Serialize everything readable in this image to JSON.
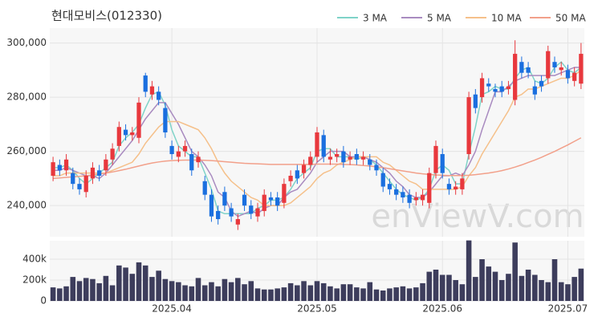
{
  "chart_data": {
    "type": "candlestick",
    "title": "현대모비스(012330)",
    "watermark": "enViewV.com",
    "legend": "top-right",
    "grid": true,
    "up_color": "#e8383d",
    "down_color": "#1a6fdf",
    "categories": [
      null,
      null,
      null,
      null,
      null,
      null,
      null,
      null,
      null,
      null,
      null,
      null,
      null,
      null,
      null,
      null,
      null,
      null,
      "2025.04",
      null,
      null,
      null,
      null,
      null,
      null,
      null,
      null,
      null,
      null,
      null,
      null,
      null,
      null,
      null,
      null,
      null,
      null,
      null,
      null,
      null,
      "2025.05",
      null,
      null,
      null,
      null,
      null,
      null,
      null,
      null,
      null,
      null,
      null,
      null,
      null,
      null,
      null,
      null,
      null,
      null,
      "2025.06",
      null,
      null,
      null,
      null,
      null,
      null,
      null,
      null,
      null,
      null,
      null,
      null,
      null,
      null,
      null,
      null,
      null,
      null,
      "2025.07",
      null,
      null
    ],
    "open": [
      251000,
      255000,
      253000,
      252000,
      248000,
      245000,
      250000,
      253000,
      253000,
      257000,
      262000,
      268000,
      266000,
      265000,
      288000,
      281000,
      282000,
      276000,
      262000,
      258000,
      260000,
      259000,
      256000,
      249000,
      244000,
      238000,
      245000,
      239000,
      233000,
      244000,
      240000,
      236000,
      238000,
      243000,
      243000,
      241000,
      249000,
      253000,
      252000,
      255000,
      258000,
      266000,
      257000,
      258000,
      260000,
      257000,
      259000,
      257000,
      257000,
      255000,
      252000,
      248000,
      246000,
      245000,
      244000,
      242000,
      242000,
      241000,
      252000,
      259000,
      248000,
      246000,
      246000,
      259000,
      281000,
      280000,
      285000,
      283000,
      284000,
      283000,
      279000,
      293000,
      291000,
      284000,
      286000,
      287000,
      293000,
      290000,
      290000,
      286000,
      285000
    ],
    "high": [
      258000,
      257000,
      259000,
      254000,
      250000,
      253000,
      256000,
      255000,
      259000,
      263000,
      271000,
      270000,
      269000,
      280000,
      289000,
      286000,
      284000,
      278000,
      264000,
      262000,
      264000,
      261000,
      260000,
      251000,
      246000,
      240000,
      247000,
      241000,
      237000,
      246000,
      242000,
      241000,
      246000,
      245000,
      245000,
      250000,
      253000,
      255000,
      257000,
      260000,
      269000,
      268000,
      261000,
      261000,
      262000,
      260000,
      261000,
      260000,
      259000,
      257000,
      254000,
      250000,
      248000,
      247000,
      246000,
      245000,
      246000,
      254000,
      264000,
      261000,
      250000,
      249000,
      252000,
      282000,
      283000,
      289000,
      287000,
      285000,
      286000,
      286000,
      301000,
      295000,
      293000,
      286000,
      288000,
      299000,
      295000,
      293000,
      292000,
      291000,
      300000
    ],
    "low": [
      249000,
      251000,
      251000,
      246000,
      244000,
      243000,
      248000,
      249000,
      251000,
      255000,
      260000,
      264000,
      264000,
      263000,
      280000,
      279000,
      277000,
      265000,
      257000,
      256000,
      258000,
      251000,
      254000,
      242000,
      234000,
      233000,
      238000,
      234000,
      231000,
      238000,
      235000,
      234000,
      236000,
      240000,
      238000,
      239000,
      247000,
      248000,
      250000,
      253000,
      256000,
      256000,
      255000,
      256000,
      254000,
      255000,
      255000,
      255000,
      253000,
      251000,
      245000,
      244000,
      242000,
      241000,
      239000,
      240000,
      240000,
      239000,
      250000,
      250000,
      244000,
      244000,
      244000,
      257000,
      274000,
      278000,
      282000,
      280000,
      280000,
      281000,
      277000,
      287000,
      287000,
      279000,
      282000,
      285000,
      289000,
      288000,
      285000,
      284000,
      283000
    ],
    "close": [
      256000,
      253000,
      257000,
      248000,
      246000,
      251000,
      254000,
      251000,
      257000,
      261000,
      269000,
      266000,
      267000,
      278000,
      282000,
      284000,
      279000,
      267000,
      259000,
      260000,
      262000,
      253000,
      258000,
      244000,
      236000,
      235000,
      240000,
      236000,
      235000,
      240000,
      237000,
      239000,
      244000,
      242000,
      240000,
      248000,
      251000,
      250000,
      255000,
      258000,
      267000,
      258000,
      258000,
      259000,
      256000,
      258000,
      257000,
      258000,
      255000,
      253000,
      247000,
      246000,
      244000,
      243000,
      241000,
      243000,
      244000,
      252000,
      262000,
      252000,
      246000,
      247000,
      250000,
      280000,
      276000,
      287000,
      284000,
      282000,
      282000,
      284000,
      296000,
      289000,
      289000,
      281000,
      284000,
      297000,
      291000,
      291000,
      287000,
      289000,
      296000
    ],
    "ylim": [
      228500,
      305500
    ],
    "yticks": [
      {
        "value": 240000,
        "label": "240,000"
      },
      {
        "value": 260000,
        "label": "260,000"
      },
      {
        "value": 280000,
        "label": "280,000"
      },
      {
        "value": 300000,
        "label": "300,000"
      }
    ],
    "series": [
      {
        "name": "3 MA",
        "color": "#7fd3c8",
        "values": [
          254000,
          254000,
          255000,
          253000,
          250000,
          248000,
          250000,
          252000,
          254000,
          256000,
          262000,
          265000,
          267000,
          270000,
          276000,
          281000,
          282000,
          277000,
          268000,
          262000,
          260000,
          258000,
          258000,
          252000,
          246000,
          238000,
          237000,
          237000,
          237000,
          237000,
          237000,
          239000,
          240000,
          242000,
          242000,
          243000,
          246000,
          250000,
          252000,
          254000,
          260000,
          261000,
          261000,
          258000,
          258000,
          258000,
          257000,
          258000,
          257000,
          255000,
          252000,
          249000,
          246000,
          244000,
          243000,
          242000,
          243000,
          246000,
          253000,
          255000,
          253000,
          248000,
          248000,
          259000,
          269000,
          281000,
          282000,
          284000,
          283000,
          283000,
          287000,
          290000,
          291000,
          286000,
          285000,
          287000,
          291000,
          293000,
          290000,
          289000,
          291000
        ]
      },
      {
        "name": "5 MA",
        "color": "#a98bc0",
        "values": [
          253000,
          253000,
          254000,
          253000,
          252000,
          251000,
          251000,
          250000,
          252000,
          255000,
          258000,
          261000,
          264000,
          268000,
          272000,
          275000,
          278000,
          278000,
          274000,
          270000,
          265000,
          260000,
          258000,
          255000,
          251000,
          245000,
          243000,
          238000,
          236000,
          237000,
          238000,
          237000,
          239000,
          240000,
          240000,
          243000,
          245000,
          246000,
          249000,
          252000,
          256000,
          258000,
          260000,
          260000,
          260000,
          258000,
          258000,
          258000,
          257000,
          256000,
          254000,
          252000,
          249000,
          247000,
          244000,
          243000,
          243000,
          245000,
          248000,
          251000,
          251000,
          252000,
          251000,
          255000,
          260000,
          268000,
          275000,
          282000,
          282000,
          284000,
          286000,
          287000,
          288000,
          288000,
          288000,
          288000,
          288000,
          289000,
          290000,
          291000,
          291000
        ]
      },
      {
        "name": "10 MA",
        "color": "#f5c08a",
        "values": [
          251000,
          251000,
          252000,
          252000,
          252000,
          252000,
          252000,
          252000,
          252000,
          253000,
          254000,
          255000,
          256000,
          259000,
          263000,
          266000,
          269000,
          271000,
          271000,
          271000,
          270000,
          269000,
          268000,
          265000,
          261000,
          256000,
          252000,
          249000,
          247000,
          245000,
          243000,
          242000,
          240000,
          240000,
          240000,
          240000,
          241000,
          243000,
          245000,
          247000,
          250000,
          252000,
          253000,
          255000,
          256000,
          257000,
          258000,
          258000,
          258000,
          258000,
          256000,
          255000,
          253000,
          251000,
          249000,
          248000,
          246000,
          246000,
          246000,
          246000,
          246000,
          246000,
          247000,
          251000,
          254000,
          259000,
          263000,
          267000,
          271000,
          275000,
          280000,
          281000,
          283000,
          283000,
          284000,
          285000,
          286000,
          287000,
          287000,
          288000,
          290000
        ]
      },
      {
        "name": "50 MA",
        "color": "#f2a08a",
        "values": [
          250000,
          250200,
          250400,
          250600,
          250800,
          251000,
          251300,
          251600,
          252000,
          252400,
          252900,
          253400,
          254000,
          254600,
          255200,
          255700,
          256100,
          256400,
          256600,
          256700,
          256800,
          256800,
          256800,
          256700,
          256600,
          256400,
          256200,
          256000,
          255800,
          255600,
          255500,
          255400,
          255300,
          255200,
          255200,
          255200,
          255200,
          255200,
          255200,
          255200,
          255300,
          255300,
          255300,
          255300,
          255200,
          255100,
          255000,
          254800,
          254600,
          254300,
          254000,
          253600,
          253200,
          252800,
          252400,
          252000,
          251700,
          251500,
          251300,
          251200,
          251100,
          251100,
          251100,
          251200,
          251400,
          251700,
          252000,
          252400,
          252900,
          253500,
          254200,
          255000,
          255900,
          256800,
          257800,
          258900,
          260000,
          261200,
          262400,
          263700,
          265000
        ]
      }
    ],
    "volume": {
      "color": "#3d3d5c",
      "ylim": [
        0,
        577000
      ],
      "yticks": [
        0,
        {
          "value": 200000,
          "label": "200k"
        },
        {
          "value": 400000,
          "label": "400k"
        }
      ],
      "values": [
        130000,
        120000,
        140000,
        230000,
        190000,
        220000,
        210000,
        170000,
        240000,
        150000,
        340000,
        320000,
        260000,
        370000,
        340000,
        230000,
        290000,
        210000,
        190000,
        180000,
        150000,
        140000,
        220000,
        150000,
        180000,
        140000,
        210000,
        180000,
        220000,
        160000,
        190000,
        120000,
        110000,
        110000,
        120000,
        130000,
        170000,
        150000,
        190000,
        150000,
        190000,
        170000,
        140000,
        120000,
        160000,
        160000,
        130000,
        120000,
        180000,
        110000,
        100000,
        120000,
        130000,
        140000,
        120000,
        130000,
        170000,
        280000,
        300000,
        250000,
        250000,
        200000,
        160000,
        580000,
        230000,
        400000,
        330000,
        280000,
        200000,
        260000,
        560000,
        240000,
        300000,
        250000,
        200000,
        180000,
        400000,
        180000,
        160000,
        230000,
        310000
      ]
    }
  }
}
